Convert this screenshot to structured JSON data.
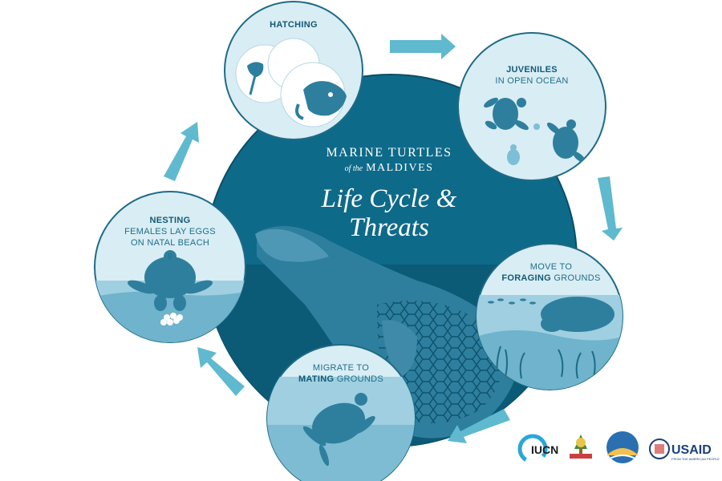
{
  "title": {
    "line1": "MARINE TURTLES",
    "line2_small": "of the",
    "line2_main": "MALDIVES",
    "line3": "Life Cycle &",
    "line4": "Threats"
  },
  "stages": {
    "hatching": {
      "label": "HATCHING"
    },
    "juveniles": {
      "label_bold": "JUVENILES",
      "label_rest": "IN OPEN OCEAN"
    },
    "foraging": {
      "label_top": "MOVE TO",
      "label_bold": "FORAGING",
      "label_rest": "GROUNDS"
    },
    "mating": {
      "label_top": "MIGRATE TO",
      "label_bold": "MATING",
      "label_rest": "GROUNDS"
    },
    "nesting": {
      "label_bold": "NESTING",
      "label_line2": "FEMALES LAY EGGS",
      "label_line3": "ON NATAL BEACH",
      "symbol": "♀"
    }
  },
  "logos": {
    "iucn": {
      "text": "IUCN"
    },
    "usaid": {
      "text": "USAID",
      "subtext": "FROM THE AMERICAN PEOPLE"
    }
  },
  "colors": {
    "center": "#0e6a89",
    "center_dark": "#0a4e68",
    "stage_bg": "#d9edf4",
    "stage_border": "#1e6b86",
    "water": "#9fcfe0",
    "water_dark": "#6fb3cc",
    "arrow": "#5fb9cf",
    "turtle": "#2e7f9e"
  }
}
